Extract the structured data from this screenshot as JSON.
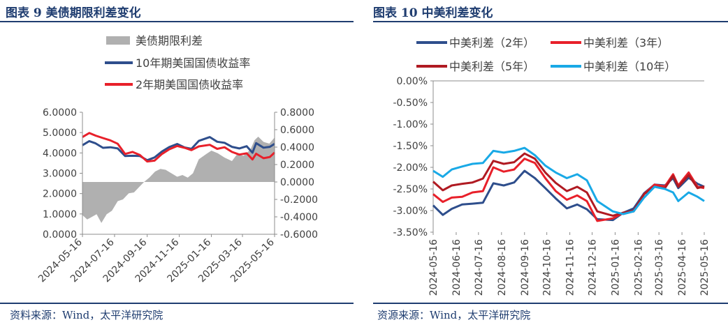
{
  "charts": [
    {
      "title": "图表 9 美债期限利差变化",
      "source": "资料来源：Wind，太平洋研究院"
    },
    {
      "title": "图表 10 中美利差变化",
      "source": "资源来源：Wind，太平洋研究院"
    }
  ],
  "chart_data": [
    {
      "type": "line",
      "title": "图表 9 美债期限利差变化",
      "x_start": "2024-05-16",
      "x_end": "2025-05-16",
      "x_tick_labels": [
        "2024-05-16",
        "2024-07-16",
        "2024-09-16",
        "2024-11-16",
        "2025-01-16",
        "2025-03-16",
        "2025-05-16"
      ],
      "y_left": {
        "lim": [
          0,
          6
        ],
        "tick_labels": [
          "0.0000",
          "1.0000",
          "2.0000",
          "3.0000",
          "4.0000",
          "5.0000",
          "6.0000"
        ]
      },
      "y_right": {
        "lim": [
          -0.6,
          0.8
        ],
        "tick_labels": [
          "-0.6000",
          "-0.4000",
          "-0.2000",
          "0.0000",
          "0.2000",
          "0.4000",
          "0.6000",
          "0.8000"
        ]
      },
      "legend_position": "top",
      "series": [
        {
          "name": "美债期限利差",
          "type": "area",
          "axis": "right",
          "color": "#b0b0b0",
          "points": [
            [
              "2024-05-16",
              -0.38
            ],
            [
              "2024-05-25",
              -0.43
            ],
            [
              "2024-06-03",
              -0.4
            ],
            [
              "2024-06-12",
              -0.37
            ],
            [
              "2024-06-21",
              -0.47
            ],
            [
              "2024-07-01",
              -0.37
            ],
            [
              "2024-07-11",
              -0.33
            ],
            [
              "2024-07-22",
              -0.22
            ],
            [
              "2024-08-01",
              -0.2
            ],
            [
              "2024-08-12",
              -0.13
            ],
            [
              "2024-08-22",
              -0.12
            ],
            [
              "2024-09-02",
              -0.05
            ],
            [
              "2024-09-10",
              0.0
            ],
            [
              "2024-09-20",
              0.05
            ],
            [
              "2024-10-01",
              0.12
            ],
            [
              "2024-10-11",
              0.15
            ],
            [
              "2024-10-21",
              0.14
            ],
            [
              "2024-11-01",
              0.1
            ],
            [
              "2024-11-12",
              0.06
            ],
            [
              "2024-11-22",
              0.08
            ],
            [
              "2024-12-02",
              0.05
            ],
            [
              "2024-12-12",
              0.1
            ],
            [
              "2024-12-23",
              0.26
            ],
            [
              "2025-01-06",
              0.32
            ],
            [
              "2025-01-16",
              0.36
            ],
            [
              "2025-01-28",
              0.33
            ],
            [
              "2025-02-10",
              0.28
            ],
            [
              "2025-02-24",
              0.24
            ],
            [
              "2025-03-06",
              0.32
            ],
            [
              "2025-03-18",
              0.3
            ],
            [
              "2025-03-31",
              0.37
            ],
            [
              "2025-04-08",
              0.48
            ],
            [
              "2025-04-15",
              0.52
            ],
            [
              "2025-04-25",
              0.46
            ],
            [
              "2025-05-06",
              0.44
            ],
            [
              "2025-05-16",
              0.51
            ]
          ]
        },
        {
          "name": "10年期美国国债收益率",
          "type": "line",
          "axis": "left",
          "color": "#2e4e8c",
          "points": [
            [
              "2024-05-16",
              4.38
            ],
            [
              "2024-05-29",
              4.58
            ],
            [
              "2024-06-10",
              4.47
            ],
            [
              "2024-06-24",
              4.25
            ],
            [
              "2024-07-08",
              4.28
            ],
            [
              "2024-07-22",
              4.22
            ],
            [
              "2024-08-05",
              3.85
            ],
            [
              "2024-08-19",
              3.86
            ],
            [
              "2024-09-02",
              3.85
            ],
            [
              "2024-09-16",
              3.64
            ],
            [
              "2024-09-30",
              3.78
            ],
            [
              "2024-10-14",
              4.07
            ],
            [
              "2024-10-28",
              4.29
            ],
            [
              "2024-11-12",
              4.44
            ],
            [
              "2024-11-26",
              4.27
            ],
            [
              "2024-12-09",
              4.2
            ],
            [
              "2024-12-23",
              4.59
            ],
            [
              "2025-01-13",
              4.78
            ],
            [
              "2025-01-27",
              4.55
            ],
            [
              "2025-02-10",
              4.5
            ],
            [
              "2025-02-24",
              4.3
            ],
            [
              "2025-03-10",
              4.22
            ],
            [
              "2025-03-24",
              4.33
            ],
            [
              "2025-04-04",
              4.01
            ],
            [
              "2025-04-11",
              4.48
            ],
            [
              "2025-04-25",
              4.26
            ],
            [
              "2025-05-07",
              4.3
            ],
            [
              "2025-05-16",
              4.45
            ]
          ]
        },
        {
          "name": "2年期美国国债收益率",
          "type": "line",
          "axis": "left",
          "color": "#e8202a",
          "points": [
            [
              "2024-05-16",
              4.78
            ],
            [
              "2024-05-29",
              4.98
            ],
            [
              "2024-06-10",
              4.85
            ],
            [
              "2024-06-24",
              4.73
            ],
            [
              "2024-07-08",
              4.62
            ],
            [
              "2024-07-22",
              4.45
            ],
            [
              "2024-08-05",
              3.95
            ],
            [
              "2024-08-19",
              4.05
            ],
            [
              "2024-09-02",
              3.9
            ],
            [
              "2024-09-16",
              3.58
            ],
            [
              "2024-09-30",
              3.62
            ],
            [
              "2024-10-14",
              3.95
            ],
            [
              "2024-10-28",
              4.18
            ],
            [
              "2024-11-12",
              4.34
            ],
            [
              "2024-11-26",
              4.25
            ],
            [
              "2024-12-09",
              4.14
            ],
            [
              "2024-12-23",
              4.32
            ],
            [
              "2025-01-13",
              4.4
            ],
            [
              "2025-01-27",
              4.2
            ],
            [
              "2025-02-10",
              4.28
            ],
            [
              "2025-02-24",
              4.05
            ],
            [
              "2025-03-10",
              3.92
            ],
            [
              "2025-03-24",
              3.98
            ],
            [
              "2025-04-04",
              3.68
            ],
            [
              "2025-04-11",
              3.96
            ],
            [
              "2025-04-25",
              3.74
            ],
            [
              "2025-05-07",
              3.8
            ],
            [
              "2025-05-16",
              4.02
            ]
          ]
        }
      ]
    },
    {
      "type": "line",
      "title": "图表 10 中美利差变化",
      "x_start": "2024-05-16",
      "x_end": "2025-05-16",
      "x_tick_labels": [
        "2024-05-16",
        "2024-06-16",
        "2024-07-16",
        "2024-08-16",
        "2024-09-16",
        "2024-10-16",
        "2024-11-16",
        "2024-12-16",
        "2025-01-16",
        "2025-02-16",
        "2025-03-16",
        "2025-04-16",
        "2025-05-16"
      ],
      "y": {
        "lim": [
          -3.5,
          0
        ],
        "tick_labels": [
          "0.00%",
          "-0.50%",
          "-1.00%",
          "-1.50%",
          "-2.00%",
          "-2.50%",
          "-3.00%",
          "-3.50%"
        ]
      },
      "legend_position": "top",
      "series": [
        {
          "name": "中美利差（2年）",
          "color": "#2e4e8c",
          "points": [
            [
              "2024-05-16",
              -2.88
            ],
            [
              "2024-05-29",
              -3.1
            ],
            [
              "2024-06-10",
              -2.96
            ],
            [
              "2024-06-24",
              -2.86
            ],
            [
              "2024-07-08",
              -2.84
            ],
            [
              "2024-07-22",
              -2.82
            ],
            [
              "2024-08-05",
              -2.37
            ],
            [
              "2024-08-19",
              -2.42
            ],
            [
              "2024-09-02",
              -2.35
            ],
            [
              "2024-09-16",
              -2.08
            ],
            [
              "2024-09-30",
              -2.25
            ],
            [
              "2024-10-14",
              -2.48
            ],
            [
              "2024-10-28",
              -2.72
            ],
            [
              "2024-11-12",
              -2.95
            ],
            [
              "2024-11-26",
              -2.86
            ],
            [
              "2024-12-09",
              -2.97
            ],
            [
              "2024-12-23",
              -3.2
            ],
            [
              "2025-01-13",
              -3.22
            ],
            [
              "2025-01-27",
              -3.05
            ],
            [
              "2025-02-10",
              -2.95
            ],
            [
              "2025-02-24",
              -2.6
            ],
            [
              "2025-03-10",
              -2.4
            ],
            [
              "2025-03-24",
              -2.42
            ],
            [
              "2025-04-04",
              -2.25
            ],
            [
              "2025-04-11",
              -2.48
            ],
            [
              "2025-04-25",
              -2.24
            ],
            [
              "2025-05-07",
              -2.38
            ],
            [
              "2025-05-16",
              -2.45
            ]
          ]
        },
        {
          "name": "中美利差（3年）",
          "color": "#e8202a",
          "points": [
            [
              "2024-05-16",
              -2.62
            ],
            [
              "2024-05-29",
              -2.8
            ],
            [
              "2024-06-10",
              -2.7
            ],
            [
              "2024-06-24",
              -2.68
            ],
            [
              "2024-07-08",
              -2.58
            ],
            [
              "2024-07-22",
              -2.55
            ],
            [
              "2024-08-05",
              -2.0
            ],
            [
              "2024-08-19",
              -2.1
            ],
            [
              "2024-09-02",
              -2.05
            ],
            [
              "2024-09-16",
              -1.8
            ],
            [
              "2024-09-30",
              -1.9
            ],
            [
              "2024-10-14",
              -2.25
            ],
            [
              "2024-10-28",
              -2.55
            ],
            [
              "2024-11-12",
              -2.75
            ],
            [
              "2024-11-26",
              -2.65
            ],
            [
              "2024-12-09",
              -2.78
            ],
            [
              "2024-12-23",
              -3.24
            ],
            [
              "2025-01-13",
              -3.18
            ],
            [
              "2025-01-27",
              -3.05
            ],
            [
              "2025-02-10",
              -3.02
            ],
            [
              "2025-02-24",
              -2.62
            ],
            [
              "2025-03-10",
              -2.4
            ],
            [
              "2025-03-24",
              -2.44
            ],
            [
              "2025-04-04",
              -2.16
            ],
            [
              "2025-04-11",
              -2.42
            ],
            [
              "2025-04-25",
              -2.12
            ],
            [
              "2025-05-07",
              -2.45
            ],
            [
              "2025-05-16",
              -2.48
            ]
          ]
        },
        {
          "name": "中美利差（5年）",
          "color": "#b01a22",
          "points": [
            [
              "2024-05-16",
              -2.33
            ],
            [
              "2024-05-29",
              -2.53
            ],
            [
              "2024-06-10",
              -2.42
            ],
            [
              "2024-06-24",
              -2.38
            ],
            [
              "2024-07-08",
              -2.35
            ],
            [
              "2024-07-22",
              -2.26
            ],
            [
              "2024-08-05",
              -1.85
            ],
            [
              "2024-08-19",
              -1.92
            ],
            [
              "2024-09-02",
              -1.88
            ],
            [
              "2024-09-16",
              -1.68
            ],
            [
              "2024-09-30",
              -1.8
            ],
            [
              "2024-10-14",
              -2.12
            ],
            [
              "2024-10-28",
              -2.36
            ],
            [
              "2024-11-12",
              -2.55
            ],
            [
              "2024-11-26",
              -2.45
            ],
            [
              "2024-12-09",
              -2.58
            ],
            [
              "2024-12-23",
              -3.02
            ],
            [
              "2025-01-13",
              -3.12
            ],
            [
              "2025-01-27",
              -3.05
            ],
            [
              "2025-02-10",
              -3.0
            ],
            [
              "2025-02-24",
              -2.62
            ],
            [
              "2025-03-10",
              -2.45
            ],
            [
              "2025-03-24",
              -2.48
            ],
            [
              "2025-04-04",
              -2.2
            ],
            [
              "2025-04-11",
              -2.45
            ],
            [
              "2025-04-25",
              -2.18
            ],
            [
              "2025-05-07",
              -2.48
            ],
            [
              "2025-05-16",
              -2.44
            ]
          ]
        },
        {
          "name": "中美利差（10年）",
          "color": "#19a9e6",
          "points": [
            [
              "2024-05-16",
              -2.08
            ],
            [
              "2024-05-29",
              -2.22
            ],
            [
              "2024-06-10",
              -2.05
            ],
            [
              "2024-06-24",
              -1.98
            ],
            [
              "2024-07-08",
              -1.92
            ],
            [
              "2024-07-22",
              -1.9
            ],
            [
              "2024-08-05",
              -1.62
            ],
            [
              "2024-08-19",
              -1.66
            ],
            [
              "2024-09-02",
              -1.62
            ],
            [
              "2024-09-16",
              -1.55
            ],
            [
              "2024-09-30",
              -1.72
            ],
            [
              "2024-10-14",
              -1.96
            ],
            [
              "2024-10-28",
              -2.12
            ],
            [
              "2024-11-12",
              -2.25
            ],
            [
              "2024-11-26",
              -2.16
            ],
            [
              "2024-12-09",
              -2.3
            ],
            [
              "2024-12-23",
              -2.78
            ],
            [
              "2025-01-13",
              -3.02
            ],
            [
              "2025-01-27",
              -3.08
            ],
            [
              "2025-02-10",
              -3.02
            ],
            [
              "2025-02-24",
              -2.7
            ],
            [
              "2025-03-10",
              -2.45
            ],
            [
              "2025-03-24",
              -2.5
            ],
            [
              "2025-04-04",
              -2.58
            ],
            [
              "2025-04-11",
              -2.78
            ],
            [
              "2025-04-25",
              -2.58
            ],
            [
              "2025-05-07",
              -2.68
            ],
            [
              "2025-05-16",
              -2.78
            ]
          ]
        }
      ]
    }
  ]
}
